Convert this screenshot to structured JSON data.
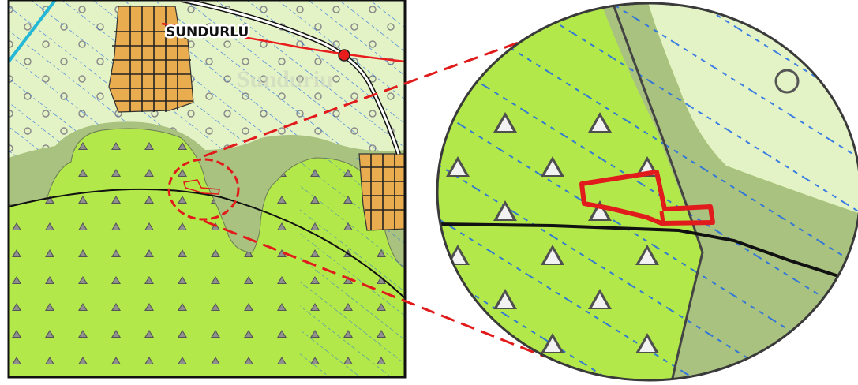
{
  "map": {
    "place_label": "SUNDURLU",
    "faded_place_label": "Sunduriu"
  },
  "colors": {
    "forest_green": "#b2e84a",
    "pale_green": "#e4f3c6",
    "olive_zone": "#a9c27f",
    "settlement_orange": "#e9ad4f",
    "road_red": "#ea1d1d",
    "highlight_red": "#e11b1b",
    "contour_blue": "#1c68e8",
    "boundary_black": "#111111"
  },
  "legend_symbols": {
    "forest_symbol": "triangle-icon",
    "open_land_symbol": "circle-icon",
    "settlement_symbol": "grid-block-icon",
    "poi_symbol": "red-dot-icon"
  }
}
